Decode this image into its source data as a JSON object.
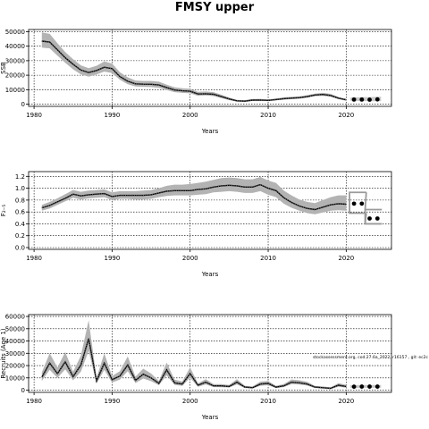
{
  "figure": {
    "title": "FMSY upper"
  },
  "chart_data": [
    {
      "type": "line",
      "id": "ssb",
      "xlabel": "Years",
      "ylabel": "SSB",
      "xlim": [
        1979.3,
        2025.8
      ],
      "ylim": [
        -1500,
        51500
      ],
      "xticks": [
        1980,
        1990,
        2000,
        2010,
        2020
      ],
      "yticks": [
        0,
        10000,
        20000,
        30000,
        40000,
        50000
      ],
      "grid": true,
      "annotation": "",
      "historical": {
        "x": [
          1981,
          1982,
          1983,
          1984,
          1985,
          1986,
          1987,
          1988,
          1989,
          1990,
          1991,
          1992,
          1993,
          1994,
          1995,
          1996,
          1997,
          1998,
          1999,
          2000,
          2001,
          2002,
          2003,
          2004,
          2005,
          2006,
          2007,
          2008,
          2009,
          2010,
          2011,
          2012,
          2013,
          2014,
          2015,
          2016,
          2017,
          2018,
          2019,
          2020
        ],
        "median": [
          43500,
          42800,
          37500,
          32000,
          27500,
          23500,
          21800,
          23200,
          25500,
          24500,
          19000,
          15800,
          14000,
          13800,
          13700,
          13200,
          11500,
          9800,
          9200,
          8900,
          7000,
          7200,
          6800,
          5200,
          3600,
          2300,
          2100,
          2800,
          2900,
          2600,
          3200,
          3800,
          4200,
          4500,
          5200,
          6300,
          6700,
          6000,
          4200,
          3000
        ],
        "lower": [
          39000,
          38500,
          33500,
          28500,
          24000,
          20500,
          19000,
          20500,
          22500,
          21500,
          16800,
          13800,
          12200,
          12000,
          11800,
          11300,
          9800,
          8300,
          7800,
          7500,
          5800,
          6000,
          5600,
          4200,
          2800,
          1700,
          1600,
          2200,
          2300,
          2000,
          2600,
          3100,
          3500,
          3800,
          4400,
          5500,
          5800,
          5100,
          3500,
          2400
        ],
        "upper": [
          49500,
          48500,
          42000,
          36000,
          31000,
          26800,
          24800,
          26500,
          29500,
          28000,
          22000,
          18500,
          16300,
          16000,
          16000,
          15500,
          13500,
          11700,
          11000,
          10700,
          8500,
          8700,
          8300,
          6500,
          4600,
          3000,
          2800,
          3600,
          3700,
          3300,
          4000,
          4700,
          5100,
          5400,
          6200,
          7300,
          7800,
          7100,
          5000,
          3700
        ]
      },
      "forecast": {
        "x": [
          2021,
          2022,
          2023,
          2024
        ],
        "median": [
          3200,
          3200,
          3100,
          3300
        ],
        "lower": [
          2300,
          2200,
          2000,
          2100
        ],
        "upper": [
          4600,
          4800,
          4900,
          5200
        ]
      }
    },
    {
      "type": "line",
      "id": "fbar",
      "xlabel": "Years",
      "ylabel": "F₂₋₅",
      "xlim": [
        1979.3,
        2025.8
      ],
      "ylim": [
        -0.03,
        1.28
      ],
      "xticks": [
        1980,
        1990,
        2000,
        2010,
        2020
      ],
      "yticks": [
        0.0,
        0.2,
        0.4,
        0.6,
        0.8,
        1.0,
        1.2
      ],
      "grid": true,
      "annotation": "",
      "historical": {
        "x": [
          1981,
          1982,
          1983,
          1984,
          1985,
          1986,
          1987,
          1988,
          1989,
          1990,
          1991,
          1992,
          1993,
          1994,
          1995,
          1996,
          1997,
          1998,
          1999,
          2000,
          2001,
          2002,
          2003,
          2004,
          2005,
          2006,
          2007,
          2008,
          2009,
          2010,
          2011,
          2012,
          2013,
          2014,
          2015,
          2016,
          2017,
          2018,
          2019,
          2020
        ],
        "median": [
          0.67,
          0.71,
          0.77,
          0.83,
          0.9,
          0.87,
          0.89,
          0.9,
          0.91,
          0.86,
          0.88,
          0.88,
          0.88,
          0.88,
          0.89,
          0.92,
          0.95,
          0.96,
          0.96,
          0.96,
          0.98,
          0.99,
          1.02,
          1.04,
          1.05,
          1.04,
          1.02,
          1.02,
          1.06,
          1.0,
          0.96,
          0.84,
          0.76,
          0.7,
          0.66,
          0.64,
          0.68,
          0.72,
          0.74,
          0.73
        ],
        "lower": [
          0.62,
          0.66,
          0.72,
          0.78,
          0.84,
          0.81,
          0.83,
          0.84,
          0.85,
          0.8,
          0.82,
          0.82,
          0.81,
          0.81,
          0.82,
          0.85,
          0.87,
          0.88,
          0.88,
          0.88,
          0.89,
          0.9,
          0.93,
          0.94,
          0.95,
          0.94,
          0.92,
          0.92,
          0.95,
          0.89,
          0.85,
          0.74,
          0.67,
          0.62,
          0.58,
          0.56,
          0.59,
          0.62,
          0.63,
          0.62
        ],
        "upper": [
          0.72,
          0.77,
          0.83,
          0.9,
          0.97,
          0.94,
          0.96,
          0.97,
          0.98,
          0.93,
          0.95,
          0.95,
          0.95,
          0.96,
          0.97,
          1.0,
          1.04,
          1.06,
          1.06,
          1.07,
          1.09,
          1.11,
          1.14,
          1.17,
          1.18,
          1.17,
          1.15,
          1.15,
          1.19,
          1.13,
          1.09,
          0.96,
          0.88,
          0.81,
          0.77,
          0.75,
          0.8,
          0.85,
          0.88,
          0.88
        ]
      },
      "forecast": {
        "x": [
          2021,
          2022,
          2023,
          2024
        ],
        "median": [
          0.74,
          0.74,
          0.49,
          0.49
        ],
        "lower": [
          0.58,
          0.58,
          0.4,
          0.4
        ],
        "upper": [
          0.93,
          0.93,
          0.64,
          0.64
        ]
      }
    },
    {
      "type": "line",
      "id": "recruits",
      "xlabel": "Years",
      "ylabel": "Recruits (Age 1)",
      "xlim": [
        1979.3,
        2025.8
      ],
      "ylim": [
        -1800,
        61500
      ],
      "xticks": [
        1980,
        1990,
        2000,
        2010,
        2020
      ],
      "yticks": [
        0,
        10000,
        20000,
        30000,
        40000,
        50000,
        60000
      ],
      "grid": true,
      "annotation": "stockassessment.org, cod.27.6a_2022, r16157 , git: ec2c",
      "historical": {
        "x": [
          1981,
          1982,
          1983,
          1984,
          1985,
          1986,
          1987,
          1988,
          1989,
          1990,
          1991,
          1992,
          1993,
          1994,
          1995,
          1996,
          1997,
          1998,
          1999,
          2000,
          2001,
          2002,
          2003,
          2004,
          2005,
          2006,
          2007,
          2008,
          2009,
          2010,
          2011,
          2012,
          2013,
          2014,
          2015,
          2016,
          2017,
          2018,
          2019,
          2020
        ],
        "median": [
          10500,
          22000,
          13500,
          23000,
          11000,
          20500,
          42000,
          7500,
          22000,
          8500,
          11500,
          20500,
          8000,
          13000,
          10000,
          5500,
          16500,
          6000,
          5000,
          13500,
          4000,
          6500,
          3500,
          3500,
          3000,
          6500,
          2500,
          2000,
          5000,
          5500,
          2500,
          3500,
          6500,
          6000,
          5000,
          2500,
          2000,
          1500,
          4000,
          3000
        ],
        "lower": [
          7500,
          16500,
          10000,
          17000,
          8000,
          15000,
          32000,
          5500,
          16500,
          6200,
          8500,
          15500,
          5800,
          9500,
          7300,
          4000,
          12000,
          4300,
          3500,
          10000,
          2800,
          4700,
          2500,
          2400,
          2100,
          4700,
          1700,
          1400,
          3600,
          4000,
          1700,
          2500,
          4900,
          4500,
          3700,
          1700,
          1300,
          1000,
          2800,
          2000
        ],
        "upper": [
          14500,
          30000,
          18500,
          31000,
          15000,
          28000,
          57000,
          10000,
          30000,
          11500,
          15500,
          27500,
          11000,
          17500,
          13500,
          7500,
          22500,
          8500,
          7000,
          18500,
          5500,
          9000,
          5000,
          5000,
          4200,
          9000,
          3600,
          3000,
          6900,
          7500,
          3500,
          4900,
          8700,
          8000,
          6800,
          3500,
          3000,
          2300,
          5700,
          4400
        ]
      },
      "forecast": {
        "x": [
          2021,
          2022,
          2023,
          2024
        ],
        "median": [
          2800,
          2900,
          2900,
          2900
        ],
        "lower": [
          1800,
          1900,
          1900,
          1900
        ],
        "upper": [
          4100,
          4200,
          4200,
          4200
        ]
      }
    }
  ]
}
